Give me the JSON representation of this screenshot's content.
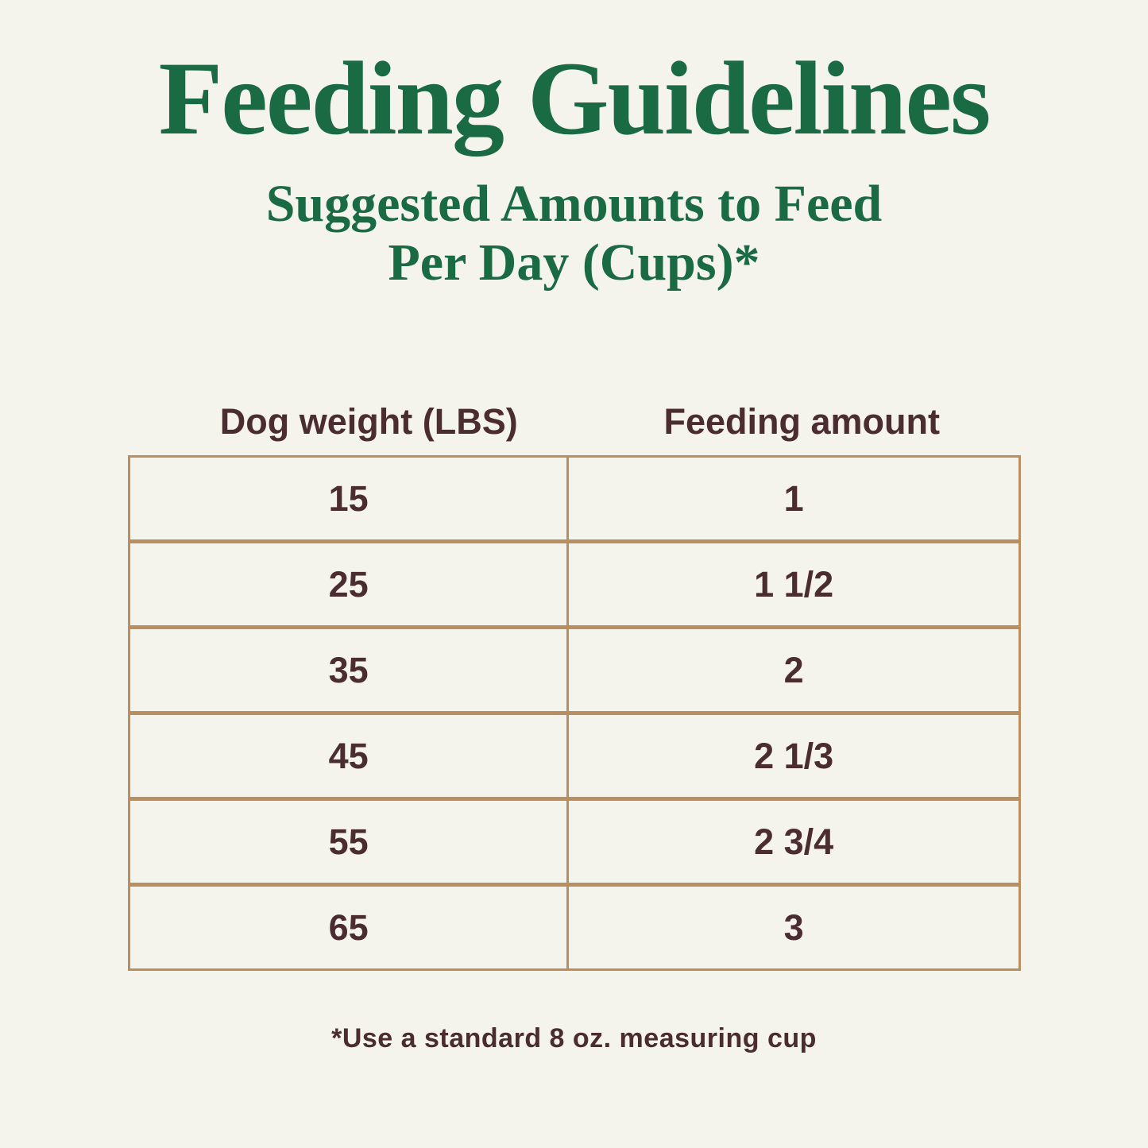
{
  "header": {
    "title": "Feeding Guidelines",
    "subtitle_line1": "Suggested Amounts to Feed",
    "subtitle_line2": "Per Day (Cups)*"
  },
  "table": {
    "columns": [
      "Dog weight (LBS)",
      "Feeding amount"
    ],
    "rows": [
      {
        "weight": "15",
        "amount": "1"
      },
      {
        "weight": "25",
        "amount": "1 1/2"
      },
      {
        "weight": "35",
        "amount": "2"
      },
      {
        "weight": "45",
        "amount": "2 1/3"
      },
      {
        "weight": "55",
        "amount": "2 3/4"
      },
      {
        "weight": "65",
        "amount": "3"
      }
    ]
  },
  "footnote": {
    "text": "*Use a standard 8 oz. measuring cup"
  },
  "colors": {
    "bg": "#f4f3ec",
    "green": "#1a6a44",
    "tan": "#b98e60",
    "brown": "#4a2c31"
  },
  "chart_data": {
    "type": "table",
    "title": "Feeding Guidelines",
    "subtitle": "Suggested Amounts to Feed Per Day (Cups)*",
    "columns": [
      "Dog weight (LBS)",
      "Feeding amount"
    ],
    "rows": [
      [
        "15",
        "1"
      ],
      [
        "25",
        "1 1/2"
      ],
      [
        "35",
        "2"
      ],
      [
        "45",
        "2 1/3"
      ],
      [
        "55",
        "2 3/4"
      ],
      [
        "65",
        "3"
      ]
    ],
    "footnote": "*Use a standard 8 oz. measuring cup"
  }
}
